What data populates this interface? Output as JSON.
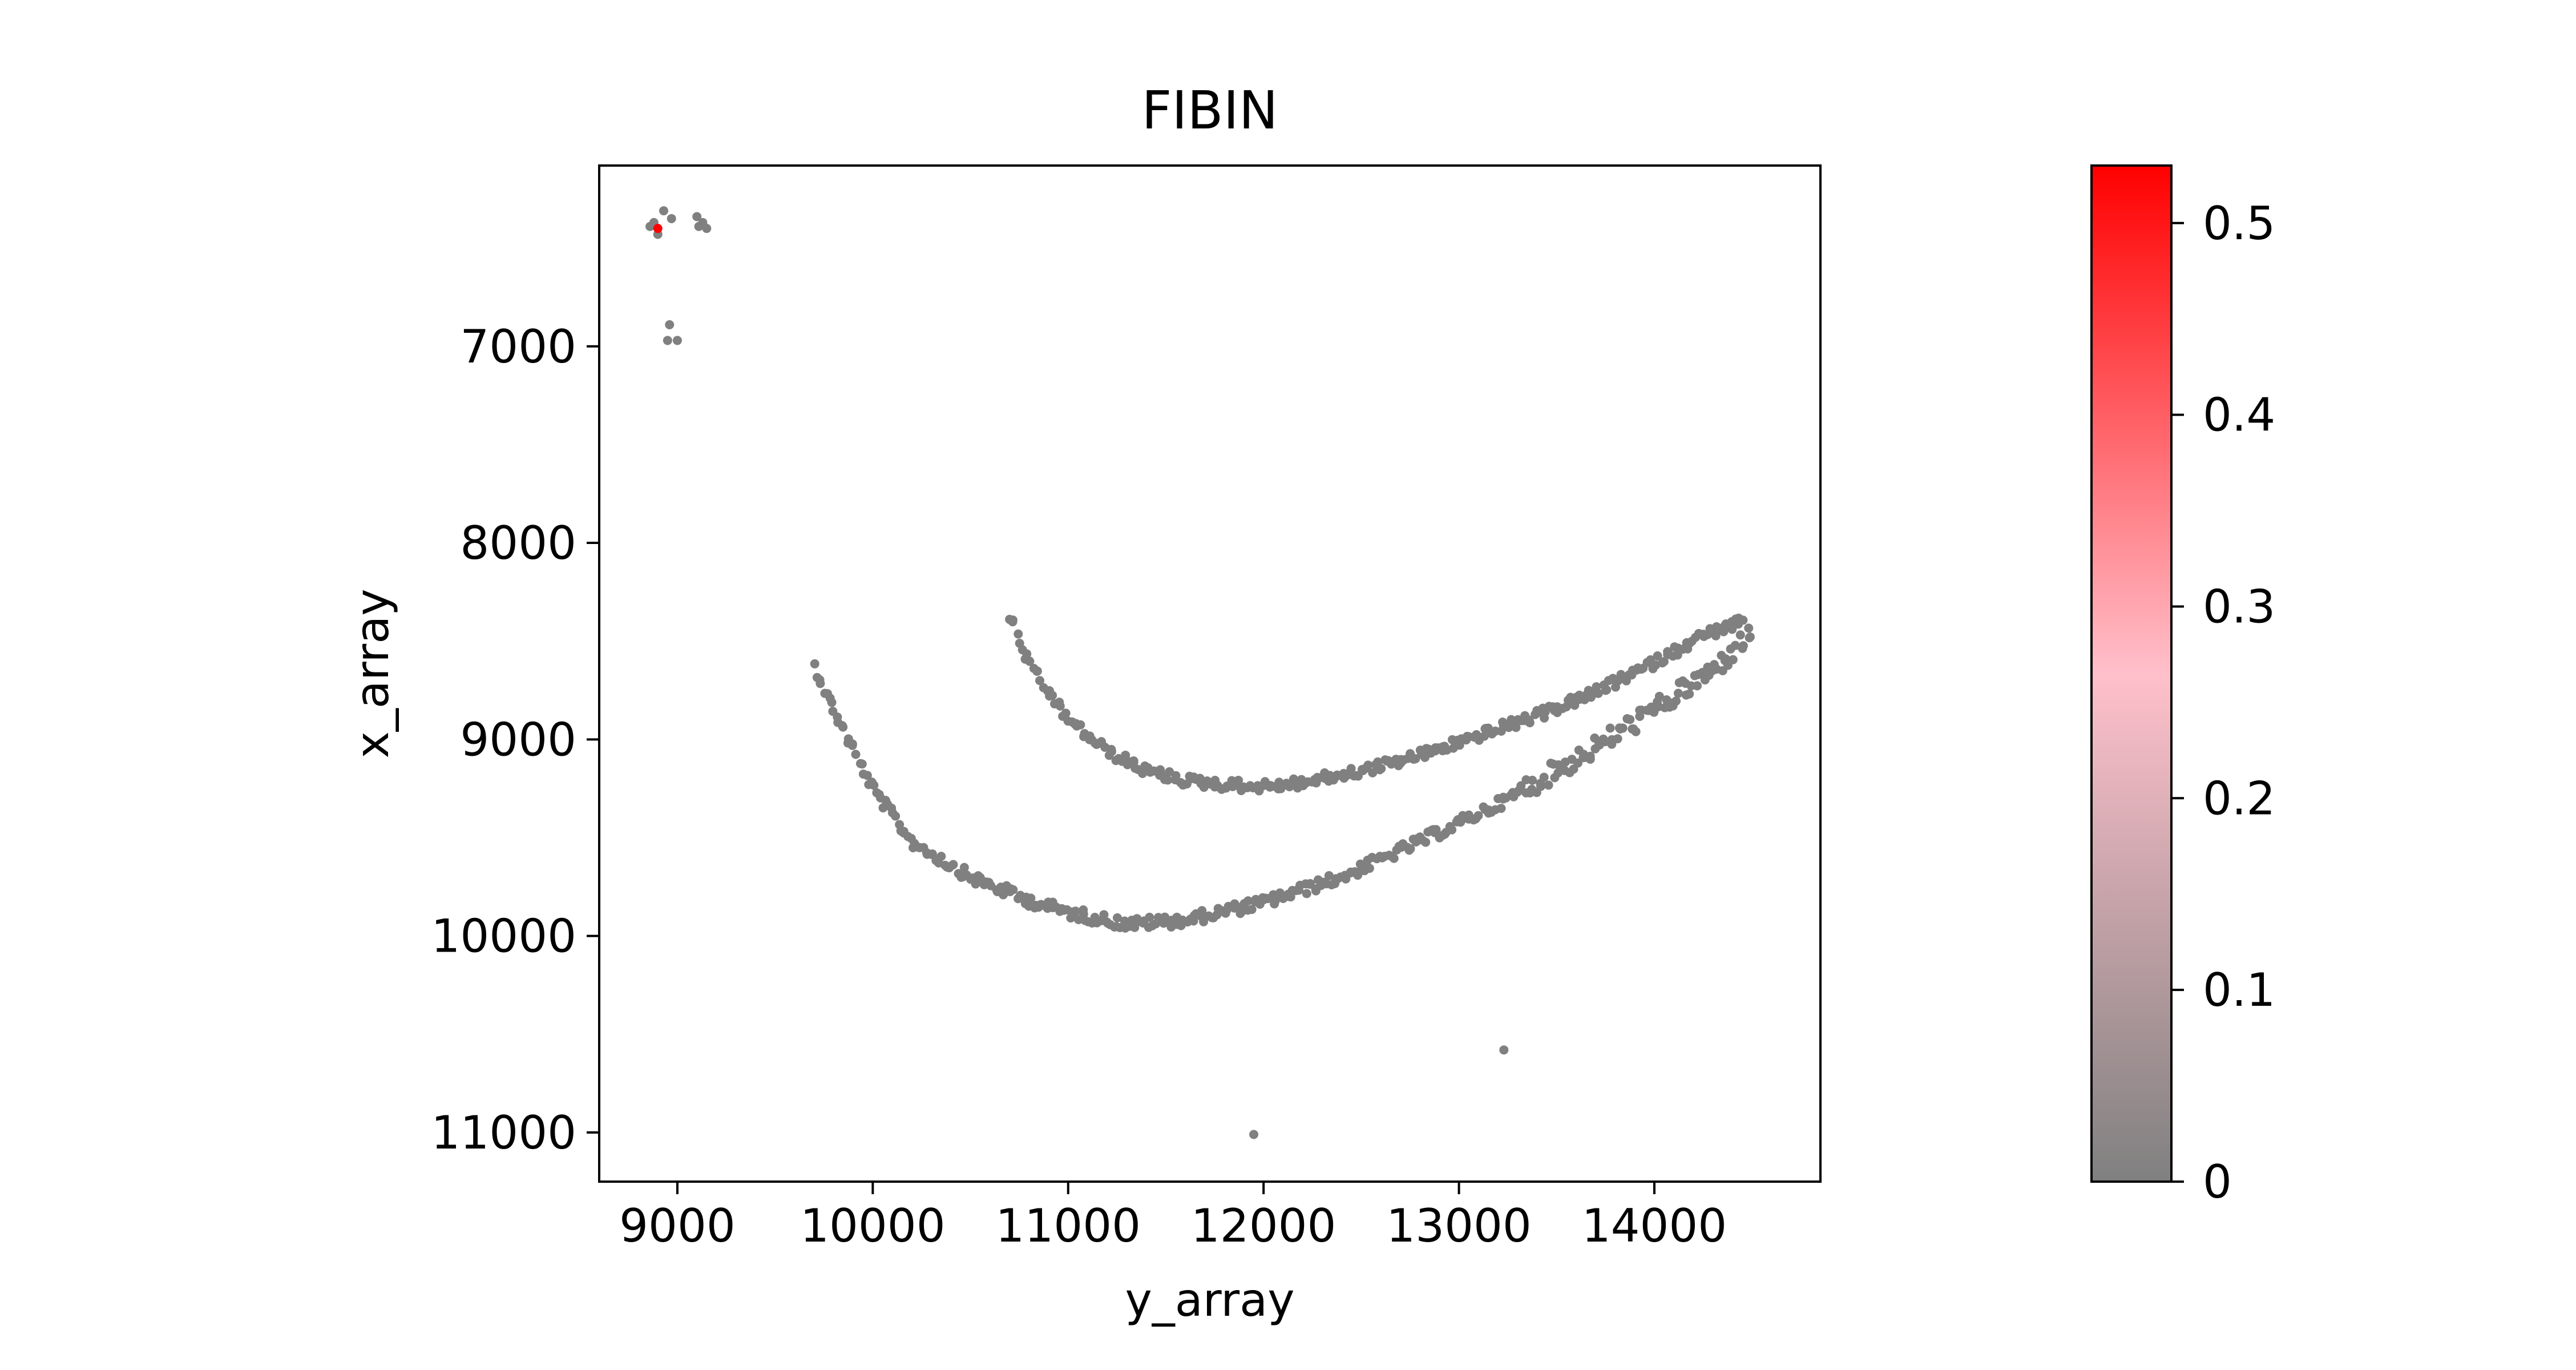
{
  "chart_data": {
    "type": "scatter",
    "title": "FIBIN",
    "xlabel": "y_array",
    "ylabel": "x_array",
    "xlim": [
      8600,
      14850
    ],
    "ylim": [
      11250,
      6080
    ],
    "y_inverted": true,
    "xticks": [
      9000,
      10000,
      11000,
      12000,
      13000,
      14000
    ],
    "xtick_labels": [
      "9000",
      "10000",
      "11000",
      "12000",
      "13000",
      "14000"
    ],
    "yticks": [
      7000,
      8000,
      9000,
      10000,
      11000
    ],
    "ytick_labels": [
      "7000",
      "8000",
      "9000",
      "10000",
      "11000"
    ],
    "grid": false,
    "point_color_default": "#808080",
    "colorbar": {
      "vmin": 0,
      "vmax": 0.53,
      "ticks": [
        0,
        0.1,
        0.2,
        0.3,
        0.4,
        0.5
      ],
      "tick_labels": [
        "0",
        "0.1",
        "0.2",
        "0.3",
        "0.4",
        "0.5"
      ],
      "colors": [
        "#808080",
        "#ffc0cb",
        "#ff0000"
      ]
    },
    "outer_arc": {
      "description_points_y_array": [
        9700,
        9800,
        10000,
        10200,
        10500,
        10800,
        11000,
        11300,
        11600,
        12000,
        12400,
        12800,
        13200,
        13600,
        14000,
        14300,
        14500
      ],
      "x_array": [
        8620,
        8850,
        9250,
        9520,
        9700,
        9820,
        9880,
        9940,
        9920,
        9830,
        9700,
        9520,
        9330,
        9100,
        8850,
        8650,
        8460
      ]
    },
    "inner_arc": {
      "y_array": [
        10700,
        10800,
        11000,
        11200,
        11400,
        11600,
        11800,
        12000,
        12200,
        12500,
        12800,
        13100,
        13400,
        13700,
        14000,
        14250,
        14450
      ],
      "x_array": [
        8370,
        8620,
        8900,
        9060,
        9160,
        9210,
        9230,
        9240,
        9220,
        9160,
        9080,
        8980,
        8880,
        8760,
        8610,
        8470,
        8400
      ]
    },
    "cluster_points": [
      {
        "y": 8860,
        "x": 6390,
        "v": 0
      },
      {
        "y": 8900,
        "x": 6430,
        "v": 0
      },
      {
        "y": 8930,
        "x": 6310,
        "v": 0
      },
      {
        "y": 8970,
        "x": 6350,
        "v": 0
      },
      {
        "y": 8880,
        "x": 6370,
        "v": 0
      },
      {
        "y": 9100,
        "x": 6340,
        "v": 0
      },
      {
        "y": 9130,
        "x": 6370,
        "v": 0
      },
      {
        "y": 9150,
        "x": 6400,
        "v": 0
      },
      {
        "y": 9110,
        "x": 6390,
        "v": 0
      },
      {
        "y": 8960,
        "x": 6890,
        "v": 0
      },
      {
        "y": 8950,
        "x": 6970,
        "v": 0
      },
      {
        "y": 9000,
        "x": 6970,
        "v": 0
      },
      {
        "y": 8900,
        "x": 6400,
        "v": 0.53
      }
    ],
    "outliers": [
      {
        "y": 13230,
        "x": 10580,
        "v": 0
      },
      {
        "y": 11950,
        "x": 11010,
        "v": 0
      }
    ]
  }
}
